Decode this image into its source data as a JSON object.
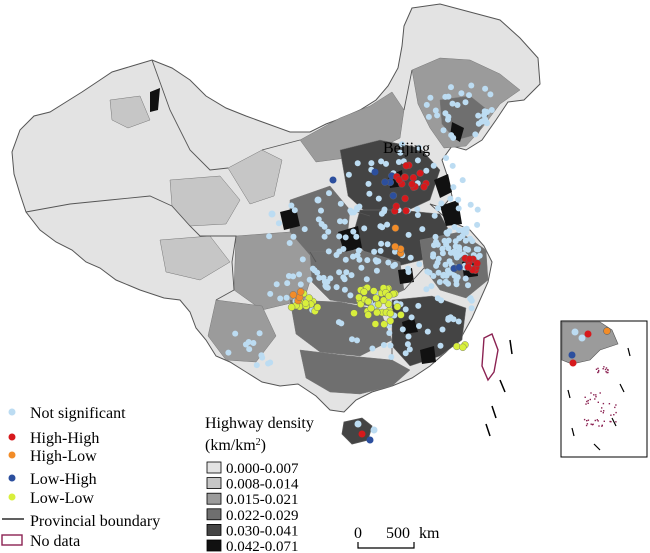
{
  "map": {
    "city_label": "Beijing",
    "colors": {
      "d0": "#e3e3e3",
      "d1": "#c6c6c6",
      "d2": "#9b9b9b",
      "d3": "#6f6f6f",
      "d4": "#444444",
      "d5": "#111111",
      "boundary": "#555555",
      "no_data": "#8b2252"
    }
  },
  "cluster_legend": {
    "items": [
      {
        "label": "Not significant",
        "color": "#bcdcf2"
      },
      {
        "label": "High-High",
        "color": "#d7191c"
      },
      {
        "label": "High-Low",
        "color": "#f28c28"
      },
      {
        "label": "Low-High",
        "color": "#2c4f9e"
      },
      {
        "label": "Low-Low",
        "color": "#d8ef3c"
      }
    ],
    "boundary_label": "Provincial boundary",
    "nodata_label": "No data"
  },
  "density_legend": {
    "title_line1": "Highway density",
    "title_line2_prefix": "(km/km",
    "title_line2_sup": "2",
    "title_line2_suffix": ")",
    "classes": [
      {
        "label": "0.000-0.007",
        "color": "#e3e3e3"
      },
      {
        "label": "0.008-0.014",
        "color": "#c6c6c6"
      },
      {
        "label": "0.015-0.021",
        "color": "#9b9b9b"
      },
      {
        "label": "0.022-0.029",
        "color": "#6f6f6f"
      },
      {
        "label": "0.030-0.041",
        "color": "#444444"
      },
      {
        "label": "0.042-0.071",
        "color": "#111111"
      }
    ]
  },
  "scale_bar": {
    "zero": "0",
    "distance": "500",
    "unit": "km"
  }
}
